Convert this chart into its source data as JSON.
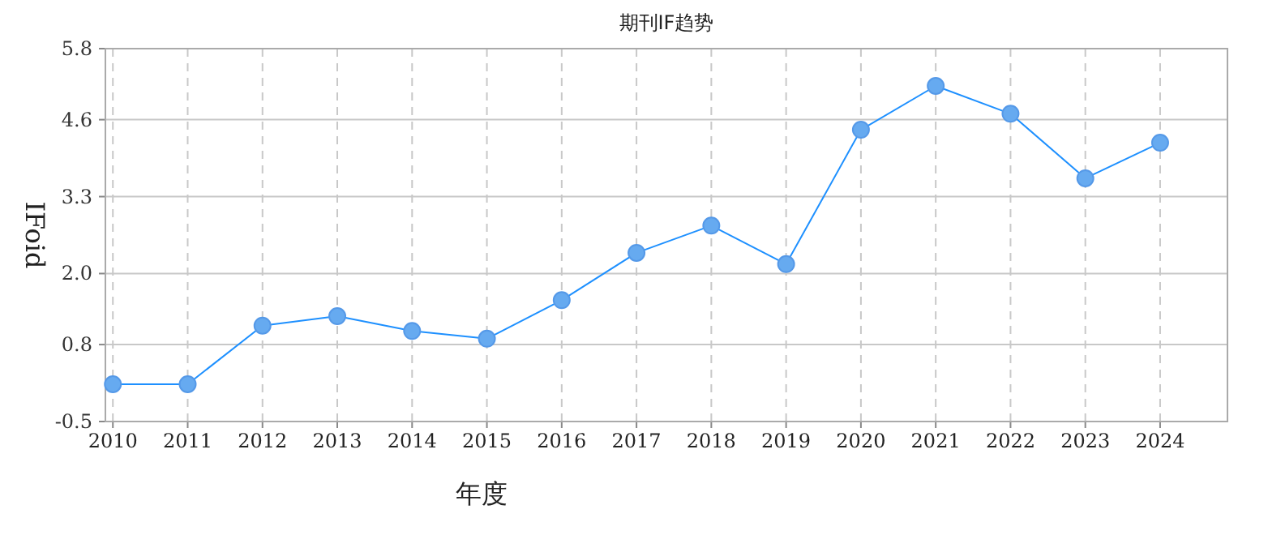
{
  "chart_data": {
    "type": "line",
    "title": "期刊IF趋势",
    "xlabel": "年度",
    "ylabel": "IFoid",
    "categories": [
      "2010",
      "2011",
      "2012",
      "2013",
      "2014",
      "2015",
      "2016",
      "2017",
      "2018",
      "2019",
      "2020",
      "2021",
      "2022",
      "2023",
      "2024"
    ],
    "series": [
      {
        "color": "#1e90ff",
        "values": [
          0.13,
          0.13,
          1.12,
          1.28,
          1.03,
          0.9,
          1.55,
          2.35,
          2.81,
          2.16,
          4.43,
          5.17,
          4.7,
          3.61,
          4.21
        ]
      }
    ],
    "ylim": [
      -0.5,
      5.8
    ],
    "yticks": [
      -0.5,
      0.8,
      {
        "value": 2.0,
        "label": "2.0"
      },
      3.3,
      4.6,
      5.8
    ],
    "grid": true,
    "marker": "circle",
    "line_style": "solid"
  }
}
